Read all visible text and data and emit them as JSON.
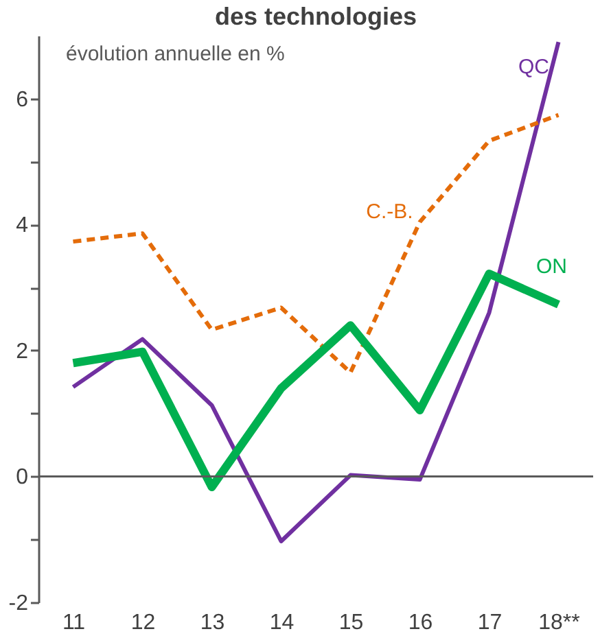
{
  "chart_data": {
    "type": "line",
    "title": "des technologies",
    "subtitle": "évolution annuelle en %",
    "categories": [
      "11",
      "12",
      "13",
      "14",
      "15",
      "16",
      "17",
      "18**"
    ],
    "series": [
      {
        "name": "QC",
        "color": "#7030a0",
        "line_style": "solid",
        "values": [
          1.42,
          2.18,
          1.13,
          -1.03,
          0.02,
          -0.05,
          2.6,
          6.9
        ]
      },
      {
        "name": "C.-B.",
        "color": "#e46c0a",
        "line_style": "dashed",
        "values": [
          3.73,
          3.86,
          2.33,
          2.68,
          1.65,
          4.04,
          5.33,
          5.74
        ]
      },
      {
        "name": "ON",
        "color": "#00b050",
        "line_style": "solid",
        "values": [
          1.8,
          1.98,
          -0.17,
          1.4,
          2.4,
          1.05,
          3.22,
          2.73
        ]
      }
    ],
    "ylim": [
      -2,
      7
    ],
    "yticks": [
      -2,
      {
        "value": -1,
        "label": null
      },
      0,
      {
        "value": 1,
        "label": null
      },
      2,
      {
        "value": 3,
        "label": null
      },
      4,
      {
        "value": 5,
        "label": null
      },
      6
    ],
    "ref_lines": [
      {
        "axis": "y",
        "value": 0,
        "color": "#595959"
      }
    ],
    "grid": false,
    "marker": "none"
  }
}
